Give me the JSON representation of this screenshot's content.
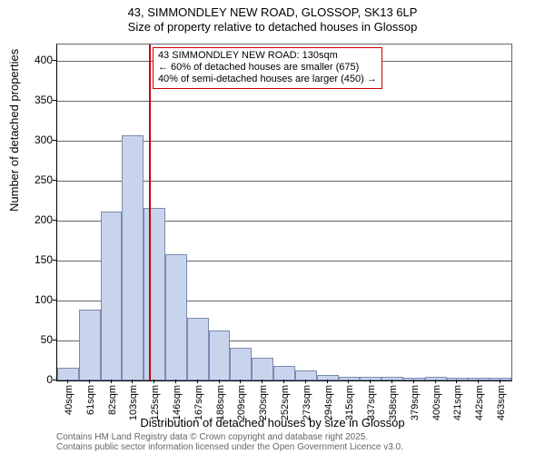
{
  "title_line1": "43, SIMMONDLEY NEW ROAD, GLOSSOP, SK13 6LP",
  "title_line2": "Size of property relative to detached houses in Glossop",
  "y_axis_label": "Number of detached properties",
  "x_axis_label": "Distribution of detached houses by size in Glossop",
  "footer_line1": "Contains HM Land Registry data © Crown copyright and database right 2025.",
  "footer_line2": "Contains public sector information licensed under the Open Government Licence v3.0.",
  "chart": {
    "type": "histogram-bar",
    "background_color": "#ffffff",
    "bar_fill": "#c8d4ec",
    "bar_stroke": "#7a8ab0",
    "ref_line_color": "#cc0000",
    "axis_color": "#000000",
    "grid_color": "#666666",
    "ymax": 420,
    "yticks": [
      0,
      50,
      100,
      150,
      200,
      250,
      300,
      350,
      400
    ],
    "x_categories": [
      "40sqm",
      "61sqm",
      "82sqm",
      "103sqm",
      "125sqm",
      "146sqm",
      "167sqm",
      "188sqm",
      "209sqm",
      "230sqm",
      "252sqm",
      "273sqm",
      "294sqm",
      "315sqm",
      "337sqm",
      "358sqm",
      "379sqm",
      "400sqm",
      "421sqm",
      "442sqm",
      "463sqm"
    ],
    "values": [
      16,
      88,
      211,
      306,
      216,
      158,
      78,
      63,
      41,
      28,
      18,
      12,
      7,
      5,
      5,
      4,
      3,
      5,
      3,
      3,
      3
    ],
    "reference_value_sqm": 130,
    "reference_bar_index": 4,
    "annotation": {
      "line1": "43 SIMMONDLEY NEW ROAD: 130sqm",
      "line2": "← 60% of detached houses are smaller (675)",
      "line3": "40% of semi-detached houses are larger (450) →"
    },
    "font_family": "Arial, sans-serif",
    "title_fontsize": 13,
    "axis_label_fontsize": 13,
    "tick_fontsize": 12,
    "annot_fontsize": 11,
    "footer_fontsize": 10
  }
}
